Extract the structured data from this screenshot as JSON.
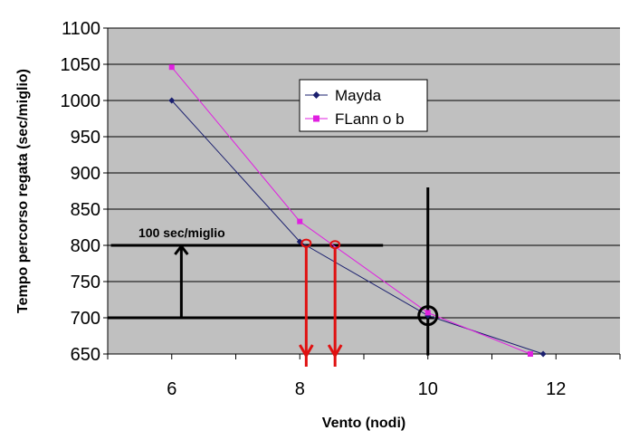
{
  "chart_data": {
    "type": "line",
    "title": "",
    "xlabel": "Vento (nodi)",
    "ylabel": "Tempo percorso regata (sec/miglio)",
    "xlim": [
      5,
      13
    ],
    "ylim": [
      650,
      1100
    ],
    "x_ticks": [
      6,
      8,
      10,
      12
    ],
    "y_ticks": [
      650,
      700,
      750,
      800,
      850,
      900,
      950,
      1000,
      1050,
      1100
    ],
    "grid": "horizontal",
    "legend_position": "top-center",
    "series": [
      {
        "name": "Mayda",
        "color": "#1a1f6e",
        "marker": "diamond",
        "x": [
          6,
          8,
          10,
          11.8
        ],
        "y": [
          1000,
          805,
          703,
          650
        ]
      },
      {
        "name": "FLann o b",
        "color": "#e020e0",
        "marker": "square",
        "x": [
          6,
          8,
          10,
          11.6
        ],
        "y": [
          1046,
          833,
          707,
          650
        ]
      }
    ],
    "annotations": {
      "text": "100 sec/miglio",
      "h_lines": [
        {
          "y": 800,
          "x_from": 5.05,
          "x_to": 9.3
        },
        {
          "y": 700,
          "x_from": 5.0,
          "x_to": 10.1
        }
      ],
      "v_line": {
        "x": 10,
        "y_from": 648,
        "y_to": 880
      },
      "circle": {
        "x": 10,
        "y": 703
      },
      "up_arrow": {
        "x": 6.15,
        "y_from": 700,
        "y_to": 800
      },
      "red_markers": [
        {
          "x": 8.1,
          "y": 803
        },
        {
          "x": 8.55,
          "y": 801
        }
      ],
      "colors": {
        "black": "#000000",
        "red": "#e01010"
      }
    },
    "plot_background": "#c0c0c0"
  }
}
